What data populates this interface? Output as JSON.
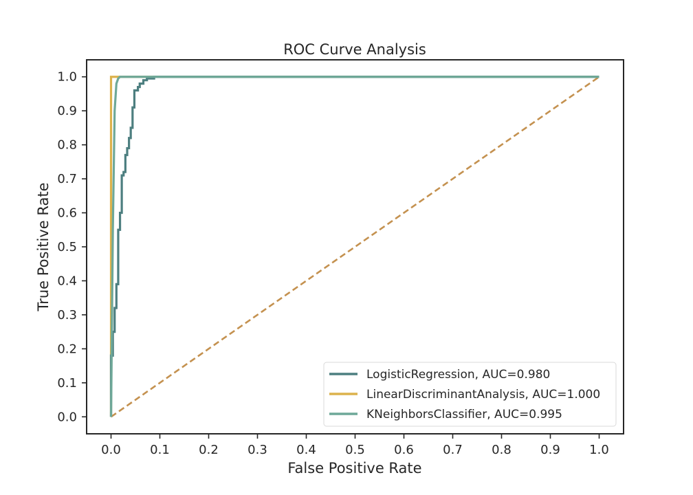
{
  "chart_data": {
    "type": "line",
    "title": "ROC Curve Analysis",
    "xlabel": "False Positive Rate",
    "ylabel": "True Positive Rate",
    "xlim": [
      -0.05,
      1.05
    ],
    "ylim": [
      -0.05,
      1.05
    ],
    "xticks": [
      "0.0",
      "0.1",
      "0.2",
      "0.3",
      "0.4",
      "0.5",
      "0.6",
      "0.7",
      "0.8",
      "0.9",
      "1.0"
    ],
    "yticks": [
      "0.0",
      "0.1",
      "0.2",
      "0.3",
      "0.4",
      "0.5",
      "0.6",
      "0.7",
      "0.8",
      "0.9",
      "1.0"
    ],
    "grid": false,
    "legend_position": "lower-right",
    "series": [
      {
        "name": "LogisticRegression, AUC=0.980",
        "color": "#4d7f80",
        "x": [
          0.0,
          0.0,
          0.0037,
          0.0037,
          0.0074,
          0.0074,
          0.011,
          0.011,
          0.0147,
          0.0147,
          0.0184,
          0.0184,
          0.022,
          0.022,
          0.0257,
          0.0257,
          0.0294,
          0.0294,
          0.0331,
          0.0331,
          0.0368,
          0.0368,
          0.0404,
          0.0404,
          0.0441,
          0.0441,
          0.0478,
          0.0478,
          0.0551,
          0.0551,
          0.0588,
          0.0588,
          0.0662,
          0.0662,
          0.0735,
          0.0735,
          0.0882,
          0.0882,
          1.0
        ],
        "y": [
          0.0,
          0.18,
          0.18,
          0.25,
          0.25,
          0.32,
          0.32,
          0.39,
          0.39,
          0.55,
          0.55,
          0.6,
          0.6,
          0.71,
          0.71,
          0.72,
          0.72,
          0.77,
          0.77,
          0.79,
          0.79,
          0.82,
          0.82,
          0.85,
          0.85,
          0.91,
          0.91,
          0.96,
          0.96,
          0.97,
          0.97,
          0.98,
          0.98,
          0.99,
          0.99,
          0.995,
          0.995,
          1.0,
          1.0
        ]
      },
      {
        "name": "LinearDiscriminantAnalysis, AUC=1.000",
        "color": "#dcb24c",
        "x": [
          0.0,
          0.0,
          0.0,
          1.0
        ],
        "y": [
          0.0,
          0.5,
          1.0,
          1.0
        ]
      },
      {
        "name": "KNeighborsClassifier, AUC=0.995",
        "color": "#6ea898",
        "x": [
          0.0,
          0.0037,
          0.0074,
          0.011,
          0.0147,
          0.0184,
          1.0
        ],
        "y": [
          0.0,
          0.55,
          0.9,
          0.98,
          0.995,
          1.0,
          1.0
        ]
      }
    ],
    "reference_line": {
      "color": "#c4914f",
      "style": "dashed",
      "x": [
        0.0,
        1.0
      ],
      "y": [
        0.0,
        1.0
      ]
    }
  }
}
